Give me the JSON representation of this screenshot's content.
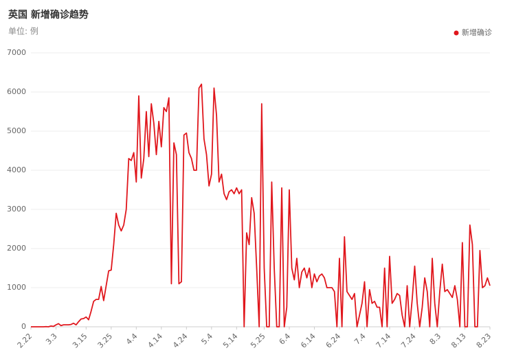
{
  "chart_data": {
    "type": "line",
    "title": "英国 新增确诊趋势",
    "subtitle": "单位: 例",
    "categories": [
      "2.22",
      null,
      null,
      null,
      null,
      null,
      null,
      null,
      null,
      null,
      "3.3",
      null,
      null,
      null,
      null,
      null,
      null,
      null,
      null,
      null,
      null,
      null,
      "3.15",
      null,
      null,
      null,
      null,
      null,
      null,
      null,
      null,
      null,
      "3.25",
      null,
      null,
      null,
      null,
      null,
      null,
      null,
      null,
      null,
      "4.4",
      null,
      null,
      null,
      null,
      null,
      null,
      null,
      null,
      null,
      "4.14",
      null,
      null,
      null,
      null,
      null,
      null,
      null,
      null,
      null,
      "4.24",
      null,
      null,
      null,
      null,
      null,
      null,
      null,
      null,
      null,
      "5.4",
      null,
      null,
      null,
      null,
      null,
      null,
      null,
      null,
      null,
      "5.14",
      null,
      null,
      null,
      null,
      null,
      null,
      null,
      null,
      null,
      null,
      "5.25",
      null,
      null,
      null,
      null,
      null,
      null,
      null,
      null,
      null,
      "6.4",
      null,
      null,
      null,
      null,
      null,
      null,
      null,
      null,
      null,
      "6.14",
      null,
      null,
      null,
      null,
      null,
      null,
      null,
      null,
      null,
      "6.24",
      null,
      null,
      null,
      null,
      null,
      null,
      null,
      null,
      null,
      "7.4",
      null,
      null,
      null,
      null,
      null,
      null,
      null,
      null,
      null,
      "7.14",
      null,
      null,
      null,
      null,
      null,
      null,
      null,
      null,
      null,
      "7.24",
      null,
      null,
      null,
      null,
      null,
      null,
      null,
      null,
      null,
      "8.3",
      null,
      null,
      null,
      null,
      null,
      null,
      null,
      null,
      null,
      "8.13",
      null,
      null,
      null,
      null,
      null,
      null,
      null,
      null,
      null,
      "8.23"
    ],
    "series": [
      {
        "name": "新增确诊",
        "color": "#e0161c",
        "values": [
          0,
          0,
          0,
          0,
          0,
          0,
          5,
          0,
          20,
          10,
          50,
          80,
          30,
          50,
          50,
          50,
          60,
          90,
          50,
          130,
          200,
          210,
          250,
          180,
          400,
          650,
          700,
          700,
          1030,
          670,
          1050,
          1430,
          1450,
          2100,
          2900,
          2600,
          2450,
          2600,
          3000,
          4300,
          4250,
          4450,
          3700,
          5900,
          3800,
          4300,
          5500,
          4350,
          5700,
          5200,
          4400,
          5250,
          4600,
          5600,
          5500,
          5850,
          1100,
          4700,
          4400,
          1100,
          1150,
          4900,
          4950,
          4450,
          4300,
          4000,
          4000,
          6100,
          6200,
          4800,
          4400,
          3600,
          3900,
          6100,
          5400,
          3700,
          3900,
          3400,
          3250,
          3450,
          3500,
          3400,
          3550,
          3400,
          3500,
          0,
          2400,
          2100,
          3300,
          2900,
          1500,
          0,
          5700,
          1500,
          0,
          0,
          3700,
          1500,
          0,
          0,
          3550,
          0,
          500,
          3500,
          1500,
          1200,
          1750,
          1000,
          1400,
          1500,
          1250,
          1500,
          1000,
          1350,
          1150,
          1300,
          1350,
          1250,
          1000,
          1000,
          1000,
          900,
          0,
          1750,
          0,
          2300,
          900,
          800,
          700,
          850,
          0,
          300,
          600,
          1150,
          0,
          950,
          600,
          650,
          500,
          500,
          0,
          1500,
          0,
          1800,
          600,
          700,
          850,
          800,
          300,
          0,
          1050,
          0,
          700,
          1550,
          600,
          0,
          500,
          1250,
          900,
          0,
          1750,
          600,
          0,
          900,
          1600,
          900,
          950,
          850,
          750,
          1050,
          700,
          0,
          2150,
          0,
          0,
          2600,
          2100,
          0,
          0,
          1950,
          1000,
          1050,
          1250,
          1050
        ]
      }
    ],
    "ylim": [
      0,
      7000
    ],
    "yticks": [
      0,
      1000,
      2000,
      3000,
      4000,
      5000,
      6000,
      7000
    ],
    "grid": true,
    "legend": "top-right"
  }
}
